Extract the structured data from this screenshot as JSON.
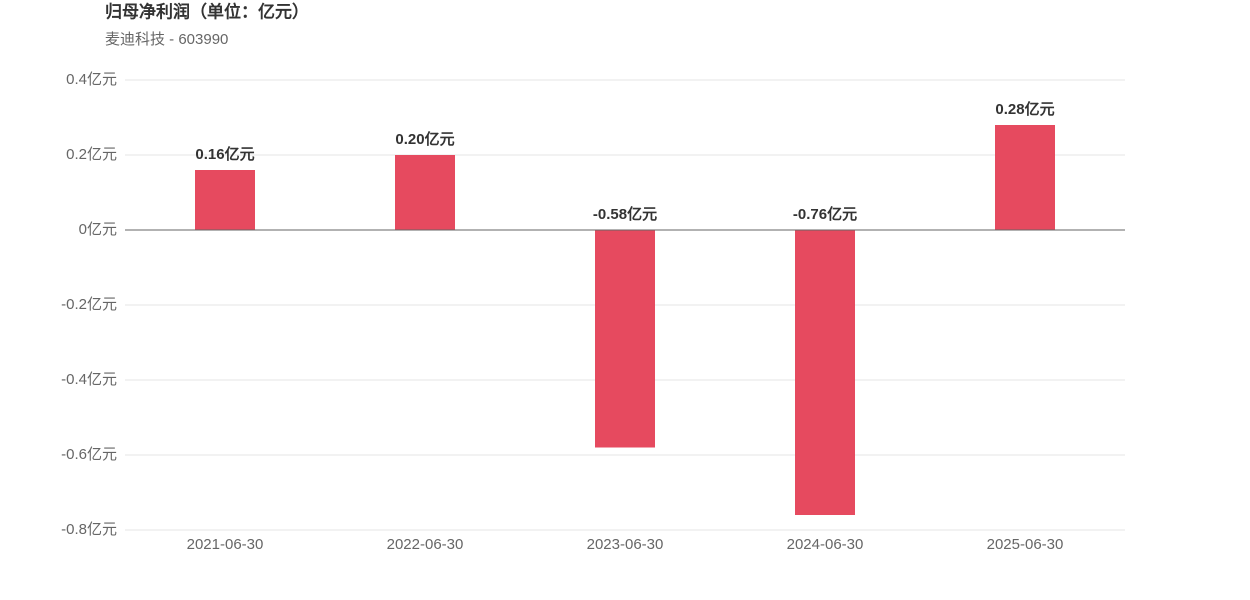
{
  "chart_data": {
    "type": "bar",
    "title": "归母净利润（单位：亿元）",
    "subtitle": "麦迪科技 - 603990",
    "categories": [
      "2021-06-30",
      "2022-06-30",
      "2023-06-30",
      "2024-06-30",
      "2025-06-30"
    ],
    "values": [
      0.16,
      0.2,
      -0.58,
      -0.76,
      0.28
    ],
    "value_labels": [
      "0.16亿元",
      "0.20亿元",
      "-0.58亿元",
      "-0.76亿元",
      "0.28亿元"
    ],
    "color": "#e64a5f",
    "ylim": [
      -0.8,
      0.4
    ],
    "yticks": [
      {
        "value": 0.4,
        "label": "0.4亿元"
      },
      {
        "value": 0.2,
        "label": "0.2亿元"
      },
      {
        "value": 0,
        "label": "0亿元"
      },
      {
        "value": -0.2,
        "label": "-0.2亿元"
      },
      {
        "value": -0.4,
        "label": "-0.4亿元"
      },
      {
        "value": -0.6,
        "label": "-0.6亿元"
      },
      {
        "value": -0.8,
        "label": "-0.8亿元"
      }
    ],
    "grid": true
  }
}
